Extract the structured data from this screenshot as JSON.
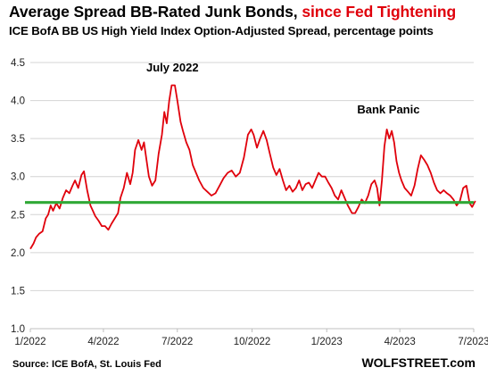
{
  "title": {
    "main": "Average Spread  BB-Rated Junk Bonds,",
    "highlight": "since Fed Tightening",
    "highlight_color": "#e0000b"
  },
  "subtitle": "ICE BofA BB US High Yield Index Option-Adjusted Spread, percentage points",
  "source": "Source: ICE BofA, St. Louis Fed",
  "brand": "WOLFSTREET.com",
  "chart_data": {
    "type": "line",
    "title": "Average Spread  BB-Rated Junk Bonds, since Fed Tightening",
    "subtitle": "ICE BofA BB US High Yield Index Option-Adjusted Spread, percentage points",
    "xlabel": "",
    "ylabel": "",
    "ylim": [
      1.0,
      4.5
    ],
    "yticks": [
      "1.0",
      "1.5",
      "2.0",
      "2.5",
      "3.0",
      "3.5",
      "4.0",
      "4.5"
    ],
    "xlim": [
      "2022-01-01",
      "2023-07-01"
    ],
    "xticks": [
      {
        "date": "2022-01-01",
        "label": "1/2022"
      },
      {
        "date": "2022-04-01",
        "label": "4/2022"
      },
      {
        "date": "2022-07-01",
        "label": "7/2022"
      },
      {
        "date": "2022-10-01",
        "label": "10/2022"
      },
      {
        "date": "2023-01-01",
        "label": "1/2023"
      },
      {
        "date": "2023-04-01",
        "label": "4/2023"
      },
      {
        "date": "2023-07-01",
        "label": "7/2023"
      }
    ],
    "grid": "horizontal",
    "series": [
      {
        "color": "#e0000b",
        "points": [
          [
            "2022-01-01",
            2.05
          ],
          [
            "2022-01-05",
            2.12
          ],
          [
            "2022-01-08",
            2.2
          ],
          [
            "2022-01-12",
            2.25
          ],
          [
            "2022-01-16",
            2.28
          ],
          [
            "2022-01-20",
            2.45
          ],
          [
            "2022-01-23",
            2.5
          ],
          [
            "2022-01-26",
            2.62
          ],
          [
            "2022-01-29",
            2.55
          ],
          [
            "2022-02-02",
            2.65
          ],
          [
            "2022-02-06",
            2.58
          ],
          [
            "2022-02-10",
            2.72
          ],
          [
            "2022-02-14",
            2.82
          ],
          [
            "2022-02-18",
            2.78
          ],
          [
            "2022-02-22",
            2.88
          ],
          [
            "2022-02-25",
            2.95
          ],
          [
            "2022-03-01",
            2.85
          ],
          [
            "2022-03-05",
            3.02
          ],
          [
            "2022-03-08",
            3.07
          ],
          [
            "2022-03-12",
            2.82
          ],
          [
            "2022-03-16",
            2.62
          ],
          [
            "2022-03-19",
            2.55
          ],
          [
            "2022-03-22",
            2.48
          ],
          [
            "2022-03-26",
            2.42
          ],
          [
            "2022-03-30",
            2.35
          ],
          [
            "2022-04-03",
            2.35
          ],
          [
            "2022-04-07",
            2.3
          ],
          [
            "2022-04-11",
            2.38
          ],
          [
            "2022-04-15",
            2.45
          ],
          [
            "2022-04-19",
            2.52
          ],
          [
            "2022-04-22",
            2.72
          ],
          [
            "2022-04-26",
            2.85
          ],
          [
            "2022-04-30",
            3.05
          ],
          [
            "2022-05-04",
            2.9
          ],
          [
            "2022-05-07",
            3.05
          ],
          [
            "2022-05-10",
            3.35
          ],
          [
            "2022-05-14",
            3.48
          ],
          [
            "2022-05-18",
            3.35
          ],
          [
            "2022-05-21",
            3.45
          ],
          [
            "2022-05-24",
            3.22
          ],
          [
            "2022-05-27",
            3.0
          ],
          [
            "2022-05-31",
            2.88
          ],
          [
            "2022-06-04",
            2.95
          ],
          [
            "2022-06-08",
            3.3
          ],
          [
            "2022-06-12",
            3.55
          ],
          [
            "2022-06-15",
            3.85
          ],
          [
            "2022-06-18",
            3.7
          ],
          [
            "2022-06-21",
            4.0
          ],
          [
            "2022-06-24",
            4.2
          ],
          [
            "2022-06-28",
            4.2
          ],
          [
            "2022-07-01",
            4.0
          ],
          [
            "2022-07-05",
            3.72
          ],
          [
            "2022-07-08",
            3.6
          ],
          [
            "2022-07-12",
            3.45
          ],
          [
            "2022-07-16",
            3.35
          ],
          [
            "2022-07-20",
            3.15
          ],
          [
            "2022-07-24",
            3.05
          ],
          [
            "2022-07-28",
            2.95
          ],
          [
            "2022-08-02",
            2.85
          ],
          [
            "2022-08-07",
            2.8
          ],
          [
            "2022-08-12",
            2.75
          ],
          [
            "2022-08-17",
            2.78
          ],
          [
            "2022-08-22",
            2.88
          ],
          [
            "2022-08-27",
            2.98
          ],
          [
            "2022-09-01",
            3.05
          ],
          [
            "2022-09-06",
            3.08
          ],
          [
            "2022-09-11",
            3.0
          ],
          [
            "2022-09-16",
            3.05
          ],
          [
            "2022-09-21",
            3.25
          ],
          [
            "2022-09-26",
            3.55
          ],
          [
            "2022-09-30",
            3.62
          ],
          [
            "2022-10-03",
            3.55
          ],
          [
            "2022-10-07",
            3.38
          ],
          [
            "2022-10-11",
            3.5
          ],
          [
            "2022-10-15",
            3.6
          ],
          [
            "2022-10-19",
            3.48
          ],
          [
            "2022-10-23",
            3.3
          ],
          [
            "2022-10-27",
            3.12
          ],
          [
            "2022-10-31",
            3.02
          ],
          [
            "2022-11-04",
            3.1
          ],
          [
            "2022-11-08",
            2.95
          ],
          [
            "2022-11-12",
            2.82
          ],
          [
            "2022-11-16",
            2.88
          ],
          [
            "2022-11-20",
            2.8
          ],
          [
            "2022-11-24",
            2.85
          ],
          [
            "2022-11-28",
            2.95
          ],
          [
            "2022-12-02",
            2.82
          ],
          [
            "2022-12-06",
            2.9
          ],
          [
            "2022-12-10",
            2.92
          ],
          [
            "2022-12-14",
            2.85
          ],
          [
            "2022-12-18",
            2.95
          ],
          [
            "2022-12-22",
            3.05
          ],
          [
            "2022-12-26",
            3.0
          ],
          [
            "2022-12-30",
            3.0
          ],
          [
            "2023-01-03",
            2.92
          ],
          [
            "2023-01-07",
            2.85
          ],
          [
            "2023-01-11",
            2.75
          ],
          [
            "2023-01-15",
            2.7
          ],
          [
            "2023-01-19",
            2.82
          ],
          [
            "2023-01-23",
            2.72
          ],
          [
            "2023-01-27",
            2.62
          ],
          [
            "2023-02-01",
            2.52
          ],
          [
            "2023-02-05",
            2.52
          ],
          [
            "2023-02-09",
            2.6
          ],
          [
            "2023-02-13",
            2.7
          ],
          [
            "2023-02-17",
            2.65
          ],
          [
            "2023-02-21",
            2.75
          ],
          [
            "2023-02-25",
            2.9
          ],
          [
            "2023-03-01",
            2.95
          ],
          [
            "2023-03-04",
            2.85
          ],
          [
            "2023-03-07",
            2.62
          ],
          [
            "2023-03-10",
            2.95
          ],
          [
            "2023-03-13",
            3.4
          ],
          [
            "2023-03-16",
            3.62
          ],
          [
            "2023-03-19",
            3.5
          ],
          [
            "2023-03-22",
            3.6
          ],
          [
            "2023-03-25",
            3.45
          ],
          [
            "2023-03-28",
            3.2
          ],
          [
            "2023-03-31",
            3.05
          ],
          [
            "2023-04-03",
            2.95
          ],
          [
            "2023-04-07",
            2.85
          ],
          [
            "2023-04-11",
            2.8
          ],
          [
            "2023-04-15",
            2.75
          ],
          [
            "2023-04-19",
            2.88
          ],
          [
            "2023-04-23",
            3.1
          ],
          [
            "2023-04-27",
            3.28
          ],
          [
            "2023-05-01",
            3.22
          ],
          [
            "2023-05-05",
            3.15
          ],
          [
            "2023-05-09",
            3.05
          ],
          [
            "2023-05-13",
            2.92
          ],
          [
            "2023-05-17",
            2.82
          ],
          [
            "2023-05-21",
            2.78
          ],
          [
            "2023-05-25",
            2.82
          ],
          [
            "2023-05-29",
            2.78
          ],
          [
            "2023-06-02",
            2.75
          ],
          [
            "2023-06-06",
            2.7
          ],
          [
            "2023-06-10",
            2.62
          ],
          [
            "2023-06-14",
            2.68
          ],
          [
            "2023-06-18",
            2.85
          ],
          [
            "2023-06-22",
            2.88
          ],
          [
            "2023-06-26",
            2.65
          ],
          [
            "2023-06-29",
            2.6
          ],
          [
            "2023-07-03",
            2.68
          ]
        ]
      }
    ],
    "reference_line": {
      "y": 2.66,
      "color": "#2fa836"
    },
    "annotations": [
      {
        "text": "July 2022",
        "date": "2022-06-25",
        "y": 4.38
      },
      {
        "text": "Bank Panic",
        "date": "2023-03-18",
        "y": 3.83
      }
    ]
  }
}
